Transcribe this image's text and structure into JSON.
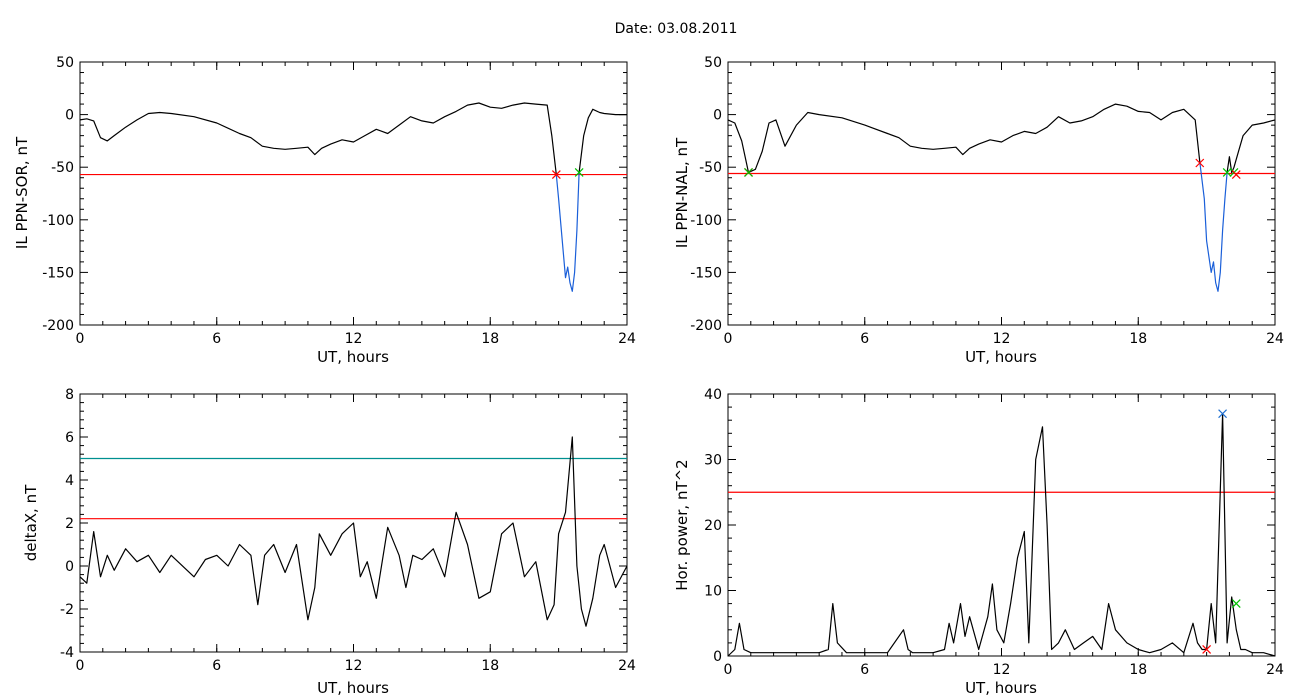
{
  "title": "Date:  03.08.2011",
  "chart_data": [
    {
      "id": "p1",
      "type": "line",
      "xlabel": "UT, hours",
      "ylabel": "IL PPN-SOR, nT",
      "xlim": [
        0,
        24
      ],
      "ylim": [
        -200,
        50
      ],
      "xticks": [
        "0",
        "6",
        "12",
        "18",
        "24"
      ],
      "yticks": [
        "50",
        "0",
        "-50",
        "-100",
        "-150",
        "-200"
      ],
      "series": [
        {
          "color": "#000000",
          "x": [
            0,
            0.3,
            0.6,
            0.9,
            1.2,
            1.5,
            2.0,
            2.5,
            3.0,
            3.5,
            4.0,
            5.0,
            6.0,
            7.0,
            7.5,
            8.0,
            8.5,
            9.0,
            9.5,
            10.0,
            10.3,
            10.6,
            11.0,
            11.5,
            12.0,
            12.5,
            13.0,
            13.5,
            14.0,
            14.5,
            15.0,
            15.5,
            16.0,
            16.5,
            17.0,
            17.5,
            18.0,
            18.5,
            19.0,
            19.5,
            20.0,
            20.5,
            20.7,
            20.9
          ],
          "y": [
            -5,
            -4,
            -6,
            -22,
            -25,
            -20,
            -12,
            -5,
            1,
            2,
            1,
            -2,
            -8,
            -18,
            -22,
            -30,
            -32,
            -33,
            -32,
            -31,
            -38,
            -32,
            -28,
            -24,
            -26,
            -20,
            -14,
            -18,
            -10,
            -2,
            -6,
            -8,
            -2,
            3,
            9,
            11,
            7,
            6,
            9,
            11,
            10,
            9,
            -20,
            -57
          ]
        },
        {
          "color": "#000000",
          "x": [
            21.9,
            22.1,
            22.3,
            22.5,
            22.8,
            23.0,
            23.5,
            24.0
          ],
          "y": [
            -55,
            -20,
            -3,
            5,
            2,
            1,
            0,
            0
          ]
        },
        {
          "color": "#1a5fd9",
          "x": [
            20.9,
            21.0,
            21.2,
            21.3,
            21.4,
            21.5,
            21.6,
            21.7,
            21.8,
            21.9
          ],
          "y": [
            -57,
            -80,
            -130,
            -155,
            -145,
            -160,
            -168,
            -150,
            -110,
            -55
          ]
        }
      ],
      "hlines": [
        {
          "y": -57,
          "color": "#ff0000"
        }
      ],
      "markers": [
        {
          "x": 20.9,
          "y": -57,
          "color": "#ff0000"
        },
        {
          "x": 21.9,
          "y": -55,
          "color": "#00c000"
        }
      ]
    },
    {
      "id": "p2",
      "type": "line",
      "xlabel": "UT, hours",
      "ylabel": "IL PPN-NAL, nT",
      "xlim": [
        0,
        24
      ],
      "ylim": [
        -200,
        50
      ],
      "xticks": [
        "0",
        "6",
        "12",
        "18",
        "24"
      ],
      "yticks": [
        "50",
        "0",
        "-50",
        "-100",
        "-150",
        "-200"
      ],
      "series": [
        {
          "color": "#000000",
          "x": [
            0,
            0.3,
            0.6,
            0.9,
            1.2,
            1.5,
            1.8,
            2.1,
            2.5,
            3.0,
            3.5,
            4.0,
            5.0,
            6.0,
            7.0,
            7.5,
            8.0,
            8.5,
            9.0,
            9.5,
            10.0,
            10.3,
            10.6,
            11.0,
            11.5,
            12.0,
            12.5,
            13.0,
            13.5,
            14.0,
            14.5,
            15.0,
            15.5,
            16.0,
            16.5,
            17.0,
            17.5,
            18.0,
            18.5,
            19.0,
            19.5,
            20.0,
            20.5,
            20.7
          ],
          "y": [
            -5,
            -8,
            -25,
            -55,
            -52,
            -35,
            -8,
            -5,
            -30,
            -10,
            2,
            0,
            -3,
            -10,
            -18,
            -22,
            -30,
            -32,
            -33,
            -32,
            -31,
            -38,
            -32,
            -28,
            -24,
            -26,
            -20,
            -16,
            -18,
            -12,
            -2,
            -8,
            -6,
            -2,
            5,
            10,
            8,
            3,
            2,
            -5,
            2,
            5,
            -5,
            -45
          ]
        },
        {
          "color": "#000000",
          "x": [
            21.9,
            22.0,
            22.1,
            22.2,
            22.4,
            22.6,
            22.8,
            23.0,
            23.5,
            24.0
          ],
          "y": [
            -55,
            -40,
            -55,
            -50,
            -35,
            -20,
            -15,
            -10,
            -8,
            -5
          ]
        },
        {
          "color": "#1a5fd9",
          "x": [
            20.7,
            20.9,
            21.0,
            21.2,
            21.3,
            21.4,
            21.5,
            21.6,
            21.7,
            21.8,
            21.9
          ],
          "y": [
            -45,
            -80,
            -120,
            -150,
            -140,
            -160,
            -168,
            -150,
            -110,
            -80,
            -55
          ]
        }
      ],
      "hlines": [
        {
          "y": -56,
          "color": "#ff0000"
        }
      ],
      "markers": [
        {
          "x": 0.9,
          "y": -55,
          "color": "#ff0000"
        },
        {
          "x": 0.9,
          "y": -55,
          "color": "#00c000"
        },
        {
          "x": 20.7,
          "y": -46,
          "color": "#ff0000"
        },
        {
          "x": 21.9,
          "y": -55,
          "color": "#00c000"
        },
        {
          "x": 22.2,
          "y": -55,
          "color": "#00c000"
        },
        {
          "x": 22.3,
          "y": -57,
          "color": "#ff0000"
        }
      ]
    },
    {
      "id": "p3",
      "type": "line",
      "xlabel": "UT, hours",
      "ylabel": "deltaX, nT",
      "xlim": [
        0,
        24
      ],
      "ylim": [
        -4,
        8
      ],
      "xticks": [
        "0",
        "6",
        "12",
        "18",
        "24"
      ],
      "yticks": [
        "8",
        "6",
        "4",
        "2",
        "0",
        "-2",
        "-4"
      ],
      "series": [
        {
          "color": "#000000",
          "x": [
            0,
            0.3,
            0.6,
            0.9,
            1.2,
            1.5,
            2.0,
            2.5,
            3.0,
            3.5,
            4.0,
            4.5,
            5.0,
            5.5,
            6.0,
            6.5,
            7.0,
            7.5,
            7.8,
            8.1,
            8.5,
            9.0,
            9.5,
            10.0,
            10.3,
            10.5,
            11.0,
            11.5,
            12.0,
            12.3,
            12.6,
            13.0,
            13.5,
            14.0,
            14.3,
            14.6,
            15.0,
            15.5,
            16.0,
            16.5,
            17.0,
            17.5,
            18.0,
            18.5,
            19.0,
            19.5,
            20.0,
            20.5,
            20.8,
            21.0,
            21.3,
            21.6,
            21.8,
            22.0,
            22.2,
            22.5,
            22.8,
            23.0,
            23.5,
            24.0
          ],
          "y": [
            -0.5,
            -0.8,
            1.6,
            -0.5,
            0.5,
            -0.2,
            0.8,
            0.2,
            0.5,
            -0.3,
            0.5,
            0.0,
            -0.5,
            0.3,
            0.5,
            0.0,
            1.0,
            0.5,
            -1.8,
            0.5,
            1.0,
            -0.3,
            1.0,
            -2.5,
            -1.0,
            1.5,
            0.5,
            1.5,
            2.0,
            -0.5,
            0.2,
            -1.5,
            1.8,
            0.5,
            -1.0,
            0.5,
            0.3,
            0.8,
            -0.5,
            2.5,
            1.0,
            -1.5,
            -1.2,
            1.5,
            2.0,
            -0.5,
            0.2,
            -2.5,
            -1.8,
            1.5,
            2.5,
            6.0,
            0.0,
            -2.0,
            -2.8,
            -1.5,
            0.5,
            1.0,
            -1.0,
            0.0
          ]
        }
      ],
      "hlines": [
        {
          "y": 5.0,
          "color": "#009090"
        },
        {
          "y": 2.2,
          "color": "#ff0000"
        }
      ],
      "markers": []
    },
    {
      "id": "p4",
      "type": "line",
      "xlabel": "UT, hours",
      "ylabel": "Hor. power, nT^2",
      "xlim": [
        0,
        24
      ],
      "ylim": [
        0,
        40
      ],
      "xticks": [
        "0",
        "6",
        "12",
        "18",
        "24"
      ],
      "yticks": [
        "40",
        "30",
        "20",
        "10",
        "0"
      ],
      "series": [
        {
          "color": "#000000",
          "x": [
            0,
            0.3,
            0.5,
            0.7,
            1.0,
            2.0,
            3.0,
            4.0,
            4.4,
            4.6,
            4.8,
            5.2,
            6.0,
            7.0,
            7.7,
            7.9,
            8.1,
            9.0,
            9.5,
            9.7,
            9.9,
            10.2,
            10.4,
            10.6,
            11.0,
            11.4,
            11.6,
            11.8,
            12.1,
            12.4,
            12.7,
            13.0,
            13.2,
            13.5,
            13.8,
            14.0,
            14.2,
            14.5,
            14.8,
            15.2,
            15.6,
            16.0,
            16.4,
            16.7,
            17.0,
            17.5,
            18.0,
            18.5,
            19.0,
            19.5,
            20.0,
            20.4,
            20.6,
            20.8,
            21.0,
            21.2,
            21.4,
            21.7,
            21.9,
            22.1,
            22.3,
            22.5,
            22.7,
            23.0,
            23.5,
            24.0
          ],
          "y": [
            0,
            1,
            5,
            1,
            0.5,
            0.5,
            0.5,
            0.5,
            1,
            8,
            2,
            0.5,
            0.5,
            0.5,
            4,
            1,
            0.5,
            0.5,
            1,
            5,
            2,
            8,
            3,
            6,
            1,
            6,
            11,
            4,
            2,
            8,
            15,
            19,
            2,
            30,
            35,
            20,
            1,
            2,
            4,
            1,
            2,
            3,
            1,
            8,
            4,
            2,
            1,
            0.5,
            1,
            2,
            0.5,
            5,
            2,
            1,
            1,
            8,
            2,
            37,
            2,
            9,
            4,
            1,
            1,
            0.5,
            0.5,
            0
          ]
        }
      ],
      "hlines": [
        {
          "y": 25,
          "color": "#ff0000"
        }
      ],
      "markers": [
        {
          "x": 21.7,
          "y": 37,
          "color": "#1f6fd0"
        },
        {
          "x": 21.0,
          "y": 1,
          "color": "#ff0000"
        },
        {
          "x": 22.3,
          "y": 8,
          "color": "#00c000"
        }
      ]
    }
  ]
}
